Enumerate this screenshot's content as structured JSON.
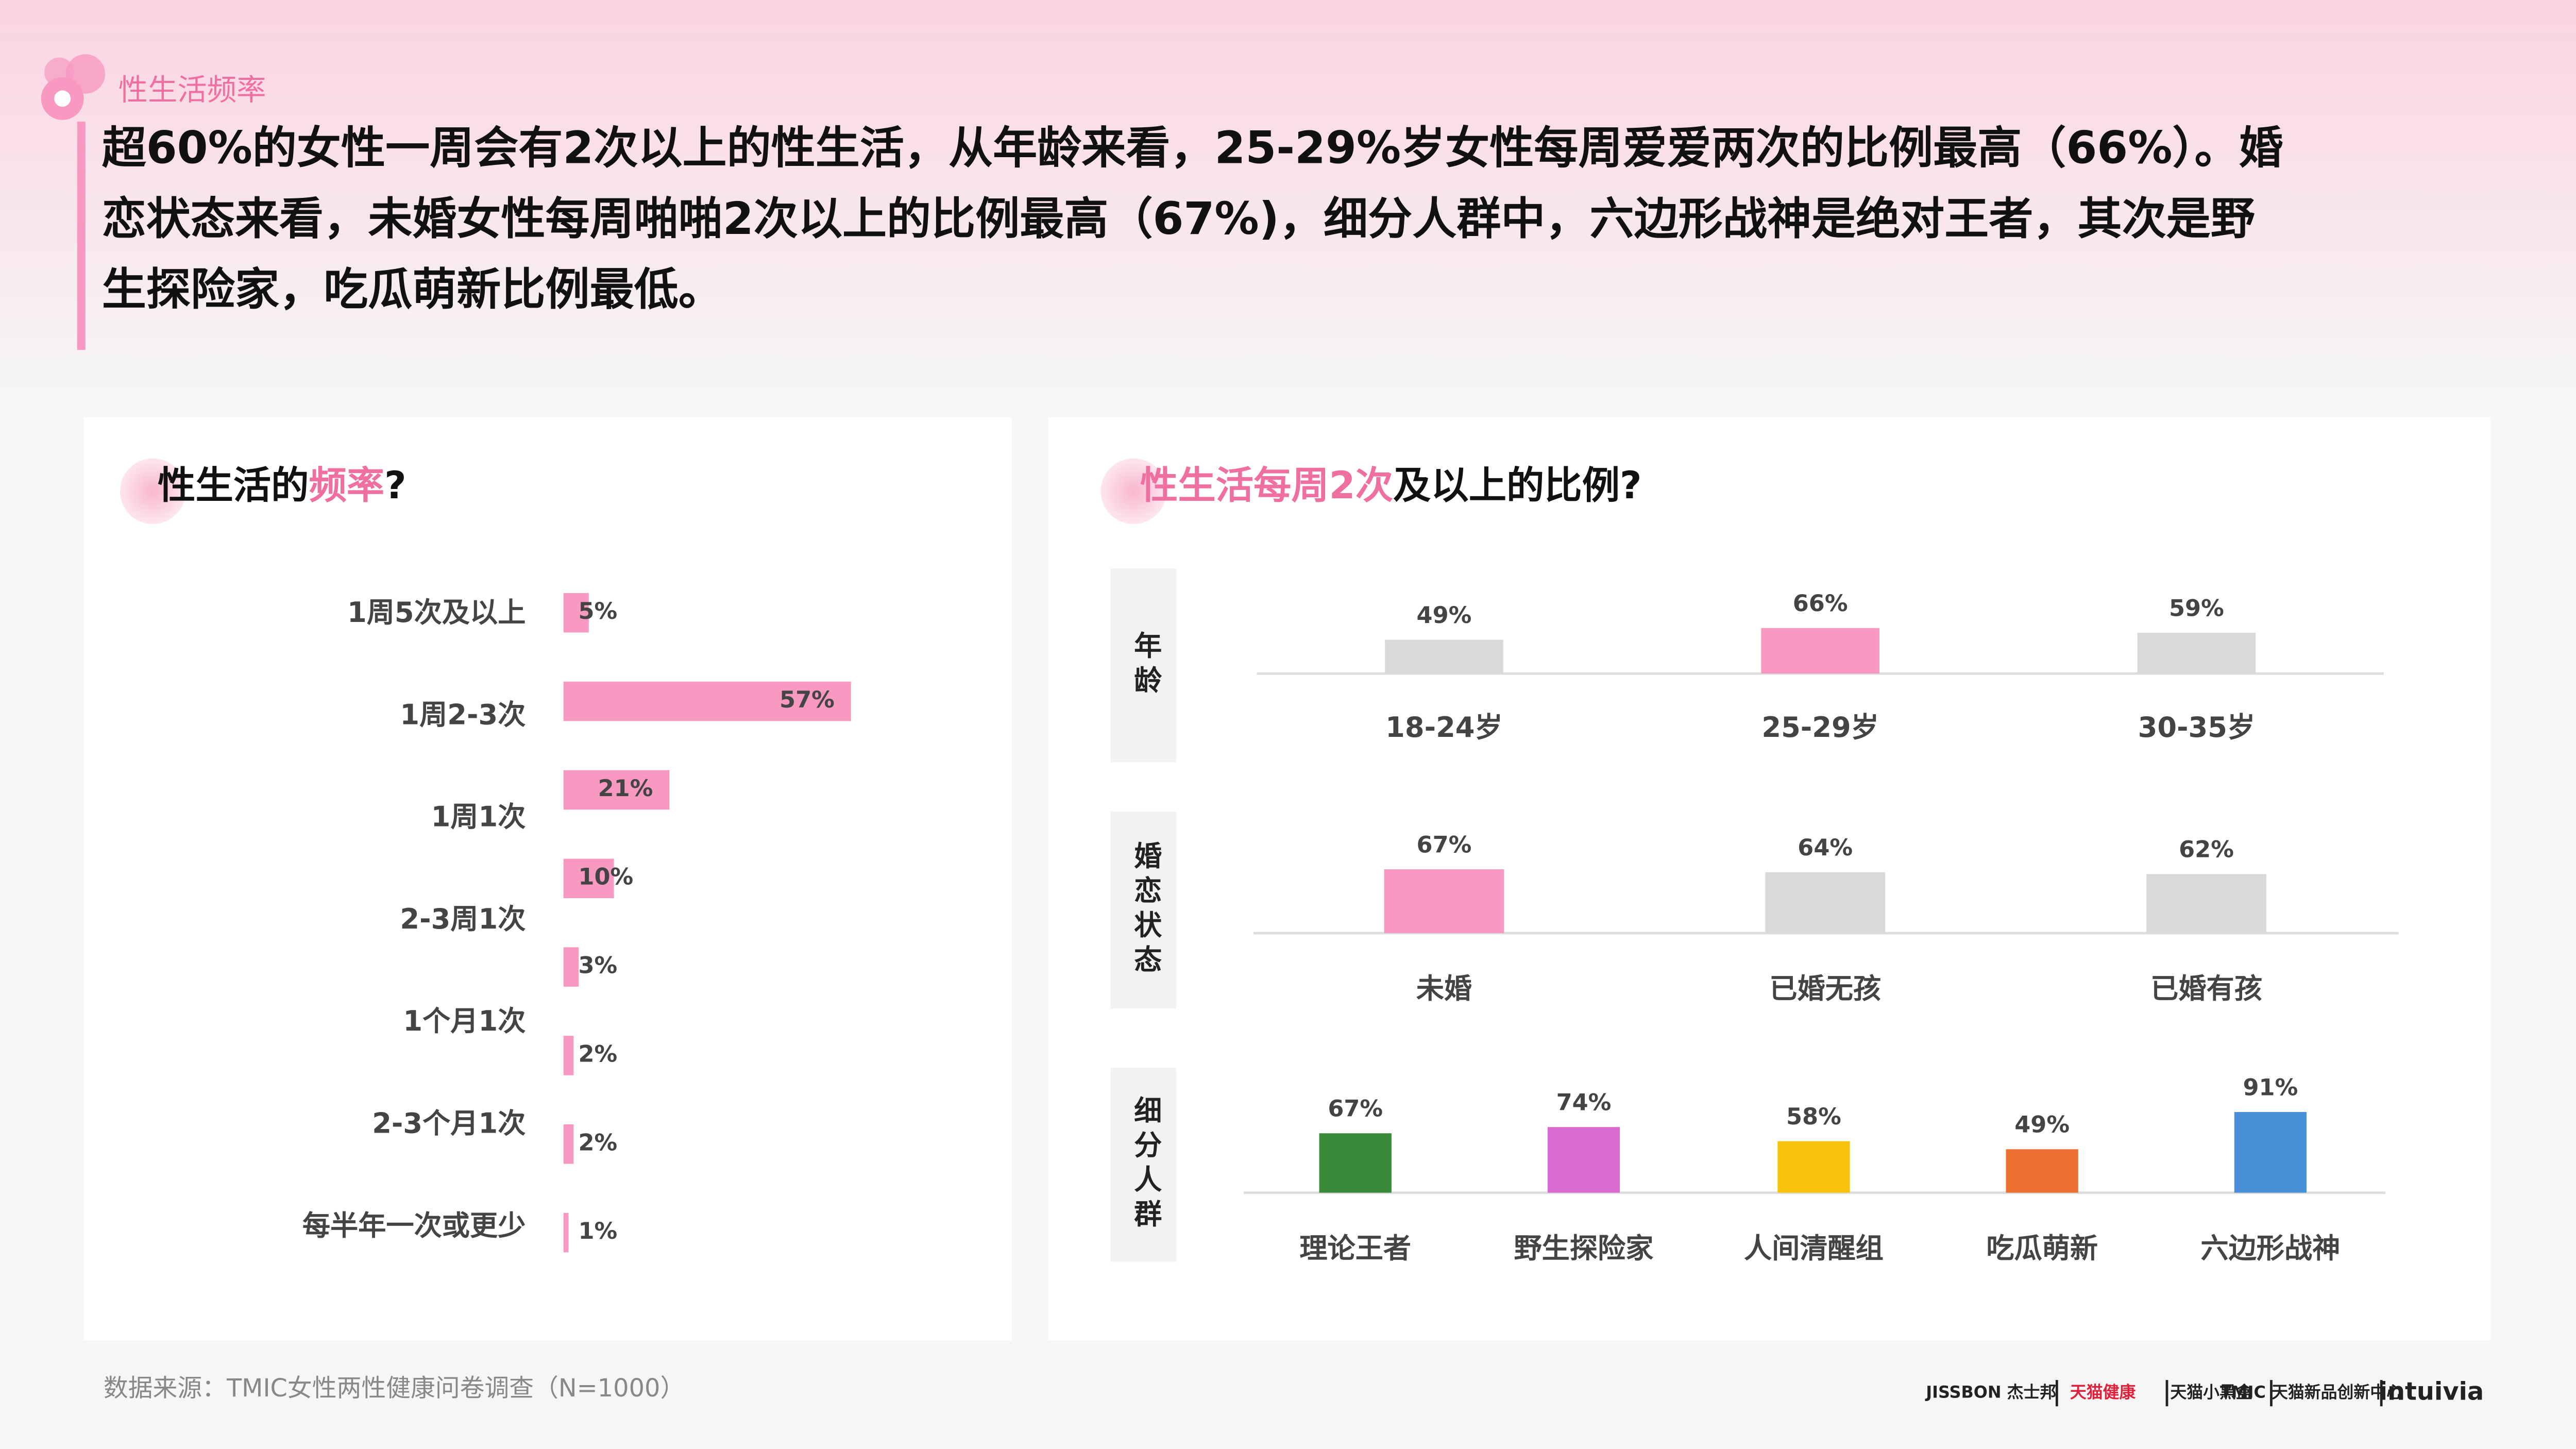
{
  "header": {
    "tag": "性生活频率",
    "lines": [
      "超60%的女性一周会有2次以上的性生活，从年龄来看，25-29%岁女性每周爱爱两次的比例最高（66%）。婚",
      "恋状态来看，未婚女性每周啪啪2次以上的比例最高（67%)，细分人群中，六边形战神是绝对王者，其次是野",
      "生探险家，吃瓜萌新比例最低。"
    ]
  },
  "chart_data": [
    {
      "type": "hbar",
      "title_parts": [
        {
          "text": "性生活的"
        },
        {
          "text": "频率",
          "highlight": true
        },
        {
          "text": "?"
        }
      ],
      "categories": [
        "1周5次及以上",
        "1周2-3次",
        "1周1次",
        "2-3周1次",
        "1个月1次",
        "2-3个月1次",
        "每半年一次或更少",
        null
      ],
      "values": [
        5,
        57,
        21,
        10,
        3,
        2,
        2,
        1
      ],
      "value_labels": [
        "5%",
        "57%",
        "21%",
        "10%",
        "3%",
        "2%",
        "2%",
        "1%"
      ],
      "color": "#f799c0"
    },
    {
      "type": "column-panels",
      "title_parts": [
        {
          "text": "性生活每周2次",
          "highlight": true
        },
        {
          "text": "及以上的比例?"
        }
      ],
      "panels": [
        {
          "label": "年龄",
          "categories": [
            "18-24岁",
            "25-29岁",
            "30-35岁"
          ],
          "values": [
            49,
            66,
            59
          ],
          "value_labels": [
            "49%",
            "66%",
            "59%"
          ],
          "colors": [
            "#d9d9d9",
            "#f799c0",
            "#d9d9d9"
          ]
        },
        {
          "label": "婚恋状态",
          "categories": [
            "未婚",
            "已婚无孩",
            "已婚有孩"
          ],
          "values": [
            67,
            64,
            62
          ],
          "value_labels": [
            "67%",
            "64%",
            "62%"
          ],
          "colors": [
            "#f799c0",
            "#d9d9d9",
            "#d9d9d9"
          ]
        },
        {
          "label": "细分人群",
          "categories": [
            "理论王者",
            "野生探险家",
            "人间清醒组",
            "吃瓜萌新",
            "六边形战神"
          ],
          "values": [
            67,
            74,
            58,
            49,
            91
          ],
          "value_labels": [
            "67%",
            "74%",
            "58%",
            "49%",
            "91%"
          ],
          "colors": [
            "#3a8a3a",
            "#d86ad0",
            "#f8c20a",
            "#ec7030",
            "#4a90d8"
          ]
        }
      ]
    }
  ],
  "footer": {
    "source": "数据来源：TMIC女性两性健康问卷调查（N=1000）",
    "logos": [
      "JISSBON 杰士邦",
      "天猫健康",
      "天猫小黑盒",
      "TMIC 天猫新品创新中心",
      "intuivia"
    ]
  }
}
